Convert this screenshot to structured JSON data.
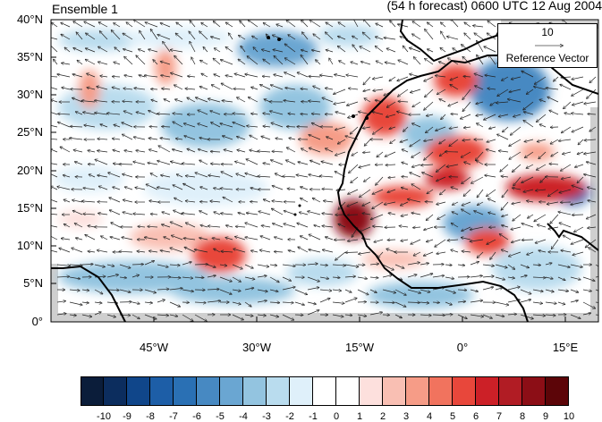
{
  "title_left": "Ensemble 1",
  "title_right": "(54 h forecast) 0600 UTC 12 Aug 2004",
  "y_tick_labels": [
    "40°N",
    "35°N",
    "30°N",
    "25°N",
    "20°N",
    "15°N",
    "10°N",
    "5°N",
    "0°"
  ],
  "x_tick_labels": [
    "45°W",
    "30°W",
    "15°W",
    "0°",
    "15°E"
  ],
  "reference_vector": {
    "magnitude": "10",
    "label": "Reference Vector"
  },
  "colorbar": {
    "labels": [
      "-10",
      "-9",
      "-8",
      "-7",
      "-6",
      "-5",
      "-4",
      "-3",
      "-2",
      "-1",
      "0",
      "1",
      "2",
      "3",
      "4",
      "5",
      "6",
      "7",
      "8",
      "9",
      "10"
    ],
    "colors": [
      "#0b1d3a",
      "#0c2d5e",
      "#10468a",
      "#1d5ea7",
      "#2a70b4",
      "#4789c2",
      "#6aa6d2",
      "#93c4e0",
      "#b9dcee",
      "#dff0fa",
      "#ffffff",
      "#ffffff",
      "#fde0dd",
      "#f9bfb3",
      "#f69c87",
      "#f1735e",
      "#e8473b",
      "#cc2027",
      "#b11c24",
      "#8c0e16",
      "#5c0508"
    ]
  },
  "map_extent": {
    "lon": [
      -60,
      20
    ],
    "lat": [
      0,
      40
    ]
  }
}
